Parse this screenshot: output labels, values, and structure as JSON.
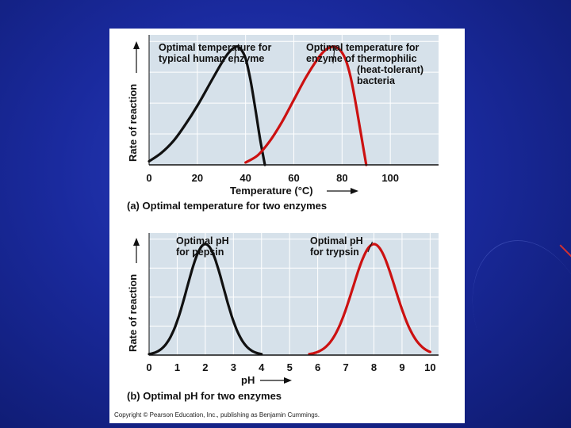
{
  "chart_data": [
    {
      "type": "line",
      "panel_label": "(a)",
      "caption": "Optimal temperature for two enzymes",
      "xlabel": "Temperature (°C)",
      "ylabel": "Rate of reaction",
      "xlim": [
        0,
        120
      ],
      "ylim": [
        0,
        1.1
      ],
      "x_ticks": [
        0,
        20,
        40,
        60,
        80,
        100
      ],
      "series": [
        {
          "color": "#111111",
          "x": [
            0,
            5,
            10,
            15,
            20,
            25,
            30,
            33,
            36,
            38,
            40,
            42,
            44,
            46,
            48
          ],
          "y": [
            0.03,
            0.1,
            0.2,
            0.34,
            0.5,
            0.68,
            0.86,
            0.95,
            1.0,
            0.98,
            0.9,
            0.72,
            0.48,
            0.22,
            0.0
          ]
        },
        {
          "color": "#cc1111",
          "x": [
            40,
            45,
            50,
            55,
            60,
            65,
            70,
            73,
            76,
            78,
            80,
            82,
            84,
            86,
            88,
            90
          ],
          "y": [
            0.02,
            0.08,
            0.2,
            0.36,
            0.55,
            0.74,
            0.9,
            0.97,
            1.0,
            0.99,
            0.95,
            0.86,
            0.7,
            0.48,
            0.24,
            0.0
          ]
        }
      ],
      "annotations": [
        {
          "text": [
            "Optimal temperature for",
            "typical human enzyme"
          ],
          "x": 36,
          "y": 1.0
        },
        {
          "text": [
            "Optimal temperature for",
            "enzyme of thermophilic",
            "(heat-tolerant)",
            "bacteria"
          ],
          "x": 77,
          "y": 1.0
        }
      ]
    },
    {
      "type": "line",
      "panel_label": "(b)",
      "caption": "Optimal pH for two enzymes",
      "xlabel": "pH",
      "ylabel": "Rate of reaction",
      "xlim": [
        0,
        10.3
      ],
      "ylim": [
        0,
        1.1
      ],
      "x_ticks": [
        0,
        1,
        2,
        3,
        4,
        5,
        6,
        7,
        8,
        9,
        10
      ],
      "series": [
        {
          "color": "#111111",
          "x": [
            0,
            4
          ],
          "peak": 2,
          "sigma": 0.65
        },
        {
          "color": "#cc1111",
          "x": [
            5.7,
            10
          ],
          "peak": 8,
          "sigma": 0.75
        }
      ],
      "annotations": [
        {
          "text": [
            "Optimal pH",
            "for pepsin"
          ],
          "x": 2,
          "y": 1.0
        },
        {
          "text": [
            "Optimal pH",
            "for trypsin"
          ],
          "x": 8,
          "y": 1.0
        }
      ]
    }
  ],
  "copyright": "Copyright © Pearson Education, Inc., publishing as Benjamin Cummings."
}
